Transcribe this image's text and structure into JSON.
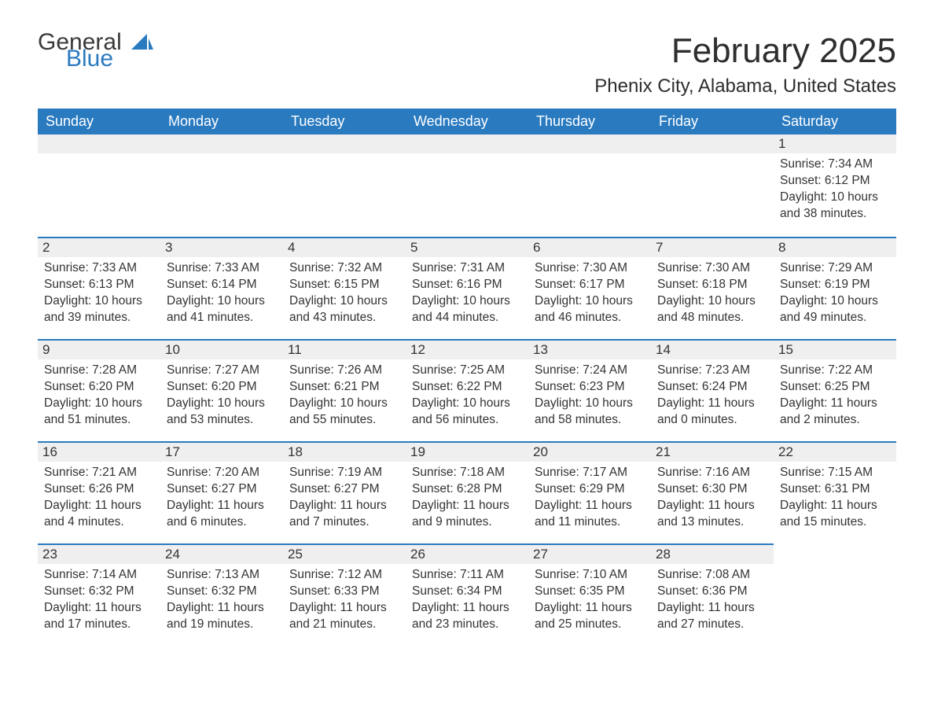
{
  "brand": {
    "general": "General",
    "blue": "Blue"
  },
  "header": {
    "month_title": "February 2025",
    "location": "Phenix City, Alabama, United States"
  },
  "styling": {
    "header_bg": "#2a7ac0",
    "header_fg": "#ffffff",
    "day_bar_bg": "#efefef",
    "day_bar_border": "#2a7ac0",
    "text_color": "#333333",
    "background": "#ffffff",
    "month_title_fontsize": 44,
    "location_fontsize": 24,
    "dayheader_fontsize": 18,
    "dayinfo_fontsize": 15.5
  },
  "day_headers": [
    "Sunday",
    "Monday",
    "Tuesday",
    "Wednesday",
    "Thursday",
    "Friday",
    "Saturday"
  ],
  "weeks": [
    [
      null,
      null,
      null,
      null,
      null,
      null,
      {
        "n": "1",
        "sr": "Sunrise: 7:34 AM",
        "ss": "Sunset: 6:12 PM",
        "dl": "Daylight: 10 hours and 38 minutes."
      }
    ],
    [
      {
        "n": "2",
        "sr": "Sunrise: 7:33 AM",
        "ss": "Sunset: 6:13 PM",
        "dl": "Daylight: 10 hours and 39 minutes."
      },
      {
        "n": "3",
        "sr": "Sunrise: 7:33 AM",
        "ss": "Sunset: 6:14 PM",
        "dl": "Daylight: 10 hours and 41 minutes."
      },
      {
        "n": "4",
        "sr": "Sunrise: 7:32 AM",
        "ss": "Sunset: 6:15 PM",
        "dl": "Daylight: 10 hours and 43 minutes."
      },
      {
        "n": "5",
        "sr": "Sunrise: 7:31 AM",
        "ss": "Sunset: 6:16 PM",
        "dl": "Daylight: 10 hours and 44 minutes."
      },
      {
        "n": "6",
        "sr": "Sunrise: 7:30 AM",
        "ss": "Sunset: 6:17 PM",
        "dl": "Daylight: 10 hours and 46 minutes."
      },
      {
        "n": "7",
        "sr": "Sunrise: 7:30 AM",
        "ss": "Sunset: 6:18 PM",
        "dl": "Daylight: 10 hours and 48 minutes."
      },
      {
        "n": "8",
        "sr": "Sunrise: 7:29 AM",
        "ss": "Sunset: 6:19 PM",
        "dl": "Daylight: 10 hours and 49 minutes."
      }
    ],
    [
      {
        "n": "9",
        "sr": "Sunrise: 7:28 AM",
        "ss": "Sunset: 6:20 PM",
        "dl": "Daylight: 10 hours and 51 minutes."
      },
      {
        "n": "10",
        "sr": "Sunrise: 7:27 AM",
        "ss": "Sunset: 6:20 PM",
        "dl": "Daylight: 10 hours and 53 minutes."
      },
      {
        "n": "11",
        "sr": "Sunrise: 7:26 AM",
        "ss": "Sunset: 6:21 PM",
        "dl": "Daylight: 10 hours and 55 minutes."
      },
      {
        "n": "12",
        "sr": "Sunrise: 7:25 AM",
        "ss": "Sunset: 6:22 PM",
        "dl": "Daylight: 10 hours and 56 minutes."
      },
      {
        "n": "13",
        "sr": "Sunrise: 7:24 AM",
        "ss": "Sunset: 6:23 PM",
        "dl": "Daylight: 10 hours and 58 minutes."
      },
      {
        "n": "14",
        "sr": "Sunrise: 7:23 AM",
        "ss": "Sunset: 6:24 PM",
        "dl": "Daylight: 11 hours and 0 minutes."
      },
      {
        "n": "15",
        "sr": "Sunrise: 7:22 AM",
        "ss": "Sunset: 6:25 PM",
        "dl": "Daylight: 11 hours and 2 minutes."
      }
    ],
    [
      {
        "n": "16",
        "sr": "Sunrise: 7:21 AM",
        "ss": "Sunset: 6:26 PM",
        "dl": "Daylight: 11 hours and 4 minutes."
      },
      {
        "n": "17",
        "sr": "Sunrise: 7:20 AM",
        "ss": "Sunset: 6:27 PM",
        "dl": "Daylight: 11 hours and 6 minutes."
      },
      {
        "n": "18",
        "sr": "Sunrise: 7:19 AM",
        "ss": "Sunset: 6:27 PM",
        "dl": "Daylight: 11 hours and 7 minutes."
      },
      {
        "n": "19",
        "sr": "Sunrise: 7:18 AM",
        "ss": "Sunset: 6:28 PM",
        "dl": "Daylight: 11 hours and 9 minutes."
      },
      {
        "n": "20",
        "sr": "Sunrise: 7:17 AM",
        "ss": "Sunset: 6:29 PM",
        "dl": "Daylight: 11 hours and 11 minutes."
      },
      {
        "n": "21",
        "sr": "Sunrise: 7:16 AM",
        "ss": "Sunset: 6:30 PM",
        "dl": "Daylight: 11 hours and 13 minutes."
      },
      {
        "n": "22",
        "sr": "Sunrise: 7:15 AM",
        "ss": "Sunset: 6:31 PM",
        "dl": "Daylight: 11 hours and 15 minutes."
      }
    ],
    [
      {
        "n": "23",
        "sr": "Sunrise: 7:14 AM",
        "ss": "Sunset: 6:32 PM",
        "dl": "Daylight: 11 hours and 17 minutes."
      },
      {
        "n": "24",
        "sr": "Sunrise: 7:13 AM",
        "ss": "Sunset: 6:32 PM",
        "dl": "Daylight: 11 hours and 19 minutes."
      },
      {
        "n": "25",
        "sr": "Sunrise: 7:12 AM",
        "ss": "Sunset: 6:33 PM",
        "dl": "Daylight: 11 hours and 21 minutes."
      },
      {
        "n": "26",
        "sr": "Sunrise: 7:11 AM",
        "ss": "Sunset: 6:34 PM",
        "dl": "Daylight: 11 hours and 23 minutes."
      },
      {
        "n": "27",
        "sr": "Sunrise: 7:10 AM",
        "ss": "Sunset: 6:35 PM",
        "dl": "Daylight: 11 hours and 25 minutes."
      },
      {
        "n": "28",
        "sr": "Sunrise: 7:08 AM",
        "ss": "Sunset: 6:36 PM",
        "dl": "Daylight: 11 hours and 27 minutes."
      },
      null
    ]
  ]
}
